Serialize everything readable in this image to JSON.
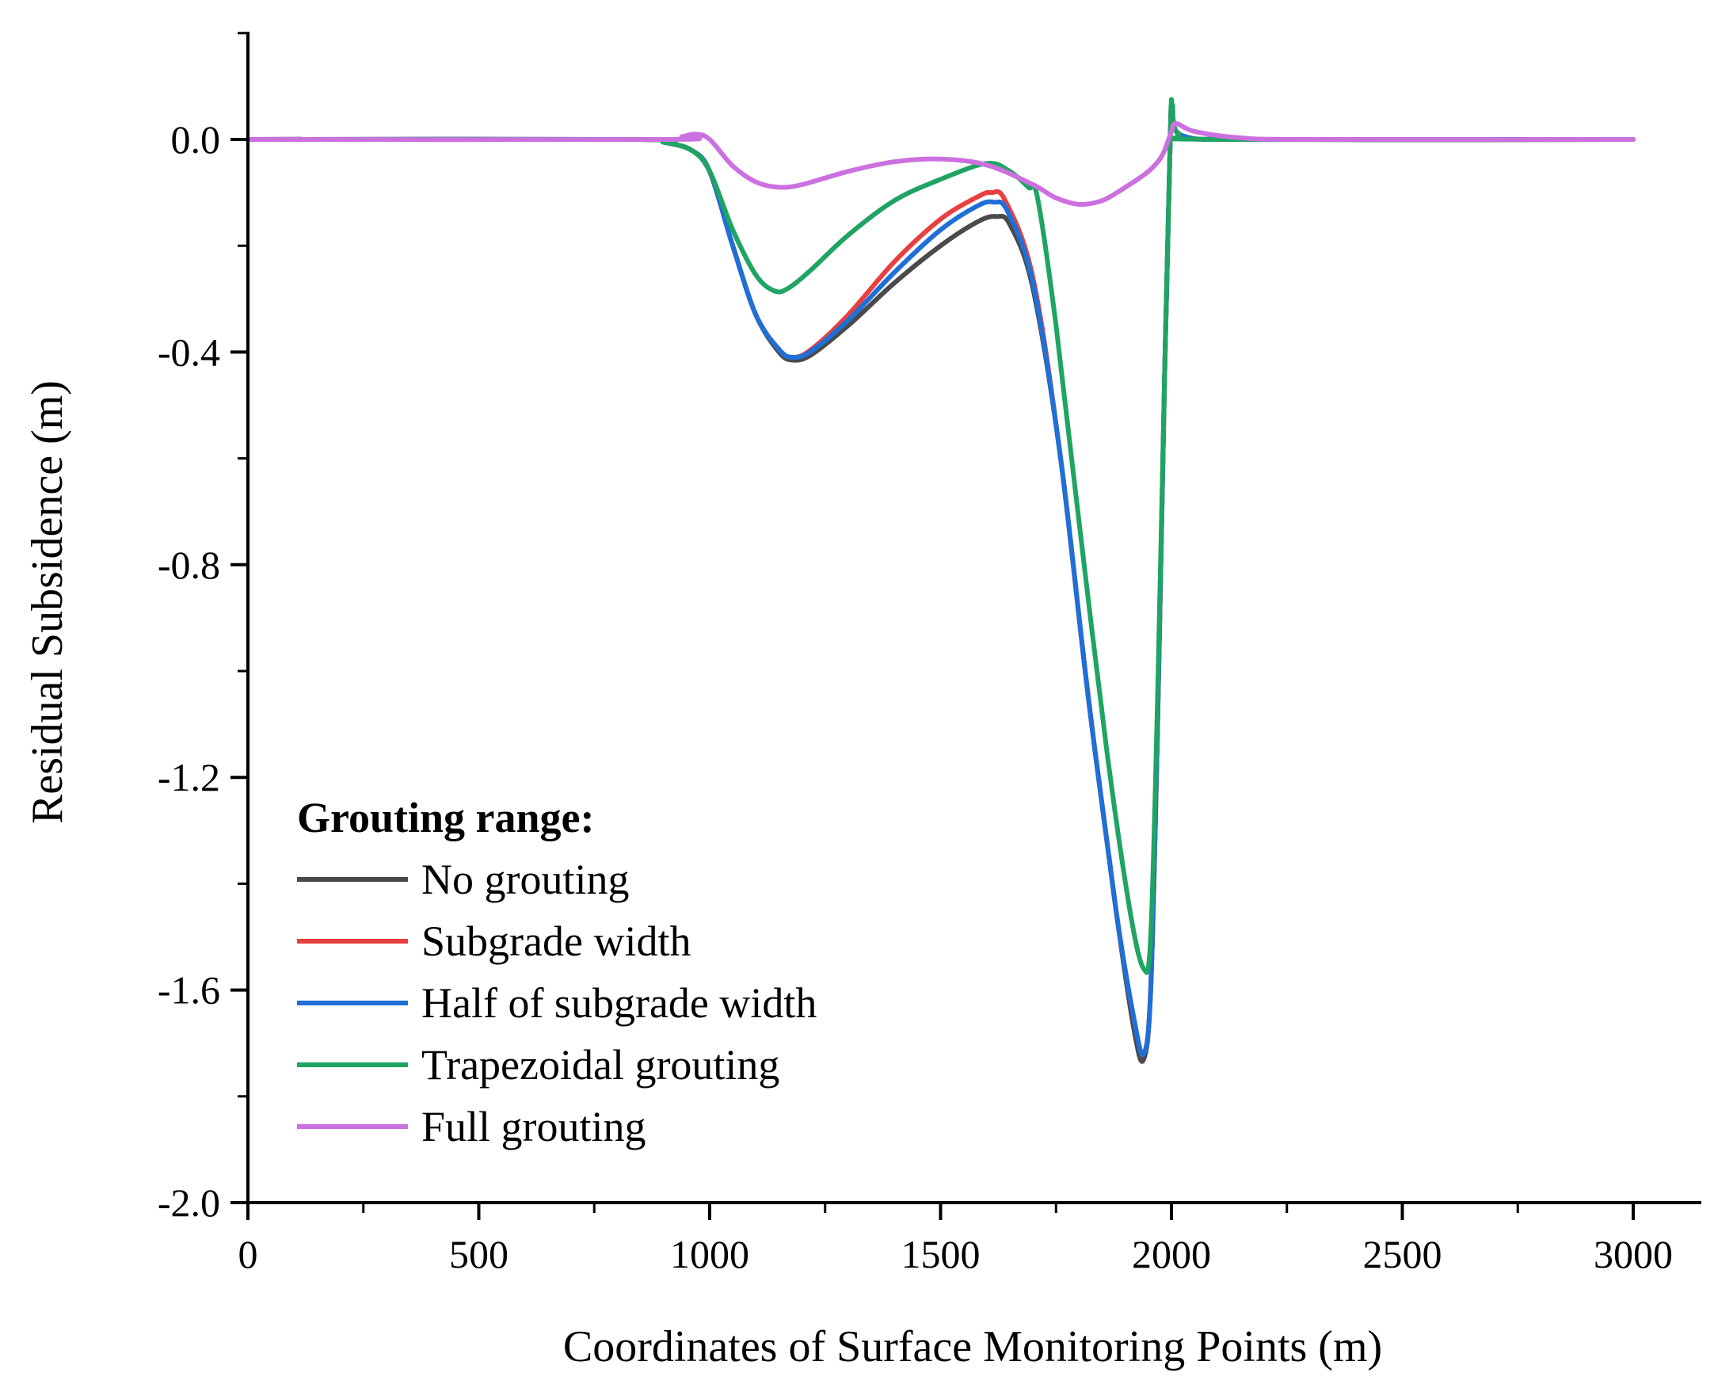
{
  "chart_data": {
    "type": "line",
    "title": "",
    "xlabel": "Coordinates of Surface Monitoring Points (m)",
    "ylabel": "Residual Subsidence (m)",
    "xlim": [
      0,
      3250
    ],
    "ylim": [
      -2.0,
      0.2
    ],
    "x_ticks": [
      0,
      500,
      1000,
      1500,
      2000,
      2500,
      3000
    ],
    "x_tick_labels": [
      "0",
      "500",
      "1000",
      "1500",
      "2000",
      "2500",
      "3000"
    ],
    "y_ticks": [
      0.0,
      -0.4,
      -0.8,
      -1.2,
      -1.6,
      -2.0
    ],
    "y_tick_labels": [
      "0.0",
      "-0.4",
      "-0.8",
      "-1.2",
      "-1.6",
      "-2.0"
    ],
    "grid": false,
    "legend": {
      "title": "Grouting range:",
      "placement": "bottom-left"
    },
    "series": [
      {
        "name": "No grouting",
        "color": "#4a4a4a",
        "points": [
          [
            0,
            0
          ],
          [
            850,
            0
          ],
          [
            900,
            -0.005
          ],
          [
            960,
            -0.02
          ],
          [
            1000,
            -0.06
          ],
          [
            1050,
            -0.2
          ],
          [
            1100,
            -0.33
          ],
          [
            1150,
            -0.4
          ],
          [
            1180,
            -0.415
          ],
          [
            1220,
            -0.405
          ],
          [
            1300,
            -0.35
          ],
          [
            1400,
            -0.27
          ],
          [
            1500,
            -0.2
          ],
          [
            1580,
            -0.155
          ],
          [
            1620,
            -0.145
          ],
          [
            1650,
            -0.16
          ],
          [
            1700,
            -0.28
          ],
          [
            1760,
            -0.6
          ],
          [
            1820,
            -1.05
          ],
          [
            1880,
            -1.45
          ],
          [
            1920,
            -1.68
          ],
          [
            1940,
            -1.73
          ],
          [
            1955,
            -1.6
          ],
          [
            1970,
            -1.1
          ],
          [
            1985,
            -0.45
          ],
          [
            1998,
            0.02
          ],
          [
            2002,
            0.04
          ],
          [
            2030,
            0.005
          ],
          [
            2200,
            0
          ],
          [
            3000,
            0
          ]
        ]
      },
      {
        "name": "Subgrade width",
        "color": "#e84040",
        "points": [
          [
            0,
            0
          ],
          [
            850,
            0
          ],
          [
            900,
            -0.005
          ],
          [
            960,
            -0.02
          ],
          [
            1000,
            -0.06
          ],
          [
            1050,
            -0.2
          ],
          [
            1100,
            -0.33
          ],
          [
            1150,
            -0.395
          ],
          [
            1180,
            -0.41
          ],
          [
            1220,
            -0.395
          ],
          [
            1300,
            -0.33
          ],
          [
            1400,
            -0.23
          ],
          [
            1500,
            -0.15
          ],
          [
            1580,
            -0.108
          ],
          [
            1610,
            -0.1
          ],
          [
            1640,
            -0.115
          ],
          [
            1700,
            -0.26
          ],
          [
            1760,
            -0.6
          ],
          [
            1820,
            -1.05
          ],
          [
            1880,
            -1.45
          ],
          [
            1920,
            -1.66
          ],
          [
            1940,
            -1.72
          ],
          [
            1955,
            -1.6
          ],
          [
            1970,
            -1.1
          ],
          [
            1985,
            -0.45
          ],
          [
            1998,
            0.02
          ],
          [
            2002,
            0.04
          ],
          [
            2030,
            0.005
          ],
          [
            2200,
            0
          ],
          [
            3000,
            0
          ]
        ]
      },
      {
        "name": "Half of subgrade width",
        "color": "#1f6fd8",
        "points": [
          [
            0,
            0
          ],
          [
            850,
            0
          ],
          [
            900,
            -0.005
          ],
          [
            960,
            -0.02
          ],
          [
            1000,
            -0.06
          ],
          [
            1050,
            -0.2
          ],
          [
            1100,
            -0.33
          ],
          [
            1150,
            -0.395
          ],
          [
            1180,
            -0.41
          ],
          [
            1220,
            -0.398
          ],
          [
            1300,
            -0.34
          ],
          [
            1400,
            -0.25
          ],
          [
            1500,
            -0.17
          ],
          [
            1580,
            -0.125
          ],
          [
            1615,
            -0.118
          ],
          [
            1645,
            -0.135
          ],
          [
            1700,
            -0.27
          ],
          [
            1760,
            -0.6
          ],
          [
            1820,
            -1.05
          ],
          [
            1880,
            -1.45
          ],
          [
            1920,
            -1.66
          ],
          [
            1940,
            -1.72
          ],
          [
            1955,
            -1.6
          ],
          [
            1970,
            -1.1
          ],
          [
            1985,
            -0.45
          ],
          [
            1998,
            0.02
          ],
          [
            2002,
            0.04
          ],
          [
            2030,
            0.005
          ],
          [
            2200,
            0
          ],
          [
            3000,
            0
          ]
        ]
      },
      {
        "name": "Trapezoidal grouting",
        "color": "#1fa463",
        "points": [
          [
            0,
            0
          ],
          [
            850,
            0
          ],
          [
            900,
            -0.005
          ],
          [
            960,
            -0.02
          ],
          [
            1000,
            -0.06
          ],
          [
            1050,
            -0.17
          ],
          [
            1100,
            -0.255
          ],
          [
            1140,
            -0.285
          ],
          [
            1170,
            -0.28
          ],
          [
            1220,
            -0.245
          ],
          [
            1300,
            -0.18
          ],
          [
            1400,
            -0.115
          ],
          [
            1500,
            -0.075
          ],
          [
            1600,
            -0.045
          ],
          [
            1650,
            -0.06
          ],
          [
            1690,
            -0.09
          ],
          [
            1710,
            -0.11
          ],
          [
            1750,
            -0.35
          ],
          [
            1800,
            -0.72
          ],
          [
            1860,
            -1.15
          ],
          [
            1910,
            -1.45
          ],
          [
            1940,
            -1.56
          ],
          [
            1955,
            -1.5
          ],
          [
            1970,
            -1.05
          ],
          [
            1985,
            -0.45
          ],
          [
            1998,
            0.02
          ],
          [
            2002,
            0.065
          ],
          [
            2015,
            0.01
          ],
          [
            2100,
            0
          ],
          [
            3000,
            0
          ]
        ]
      },
      {
        "name": "Full grouting",
        "color": "#cc70e0",
        "points": [
          [
            0,
            0
          ],
          [
            900,
            0
          ],
          [
            940,
            0.005
          ],
          [
            970,
            0.01
          ],
          [
            1000,
            0
          ],
          [
            1050,
            -0.05
          ],
          [
            1100,
            -0.08
          ],
          [
            1150,
            -0.09
          ],
          [
            1200,
            -0.085
          ],
          [
            1300,
            -0.06
          ],
          [
            1400,
            -0.042
          ],
          [
            1500,
            -0.037
          ],
          [
            1600,
            -0.048
          ],
          [
            1700,
            -0.085
          ],
          [
            1750,
            -0.11
          ],
          [
            1800,
            -0.122
          ],
          [
            1850,
            -0.115
          ],
          [
            1900,
            -0.09
          ],
          [
            1950,
            -0.06
          ],
          [
            1980,
            -0.03
          ],
          [
            2000,
            0.015
          ],
          [
            2010,
            0.03
          ],
          [
            2050,
            0.015
          ],
          [
            2150,
            0.003
          ],
          [
            2300,
            0
          ],
          [
            3000,
            0
          ]
        ]
      }
    ]
  }
}
